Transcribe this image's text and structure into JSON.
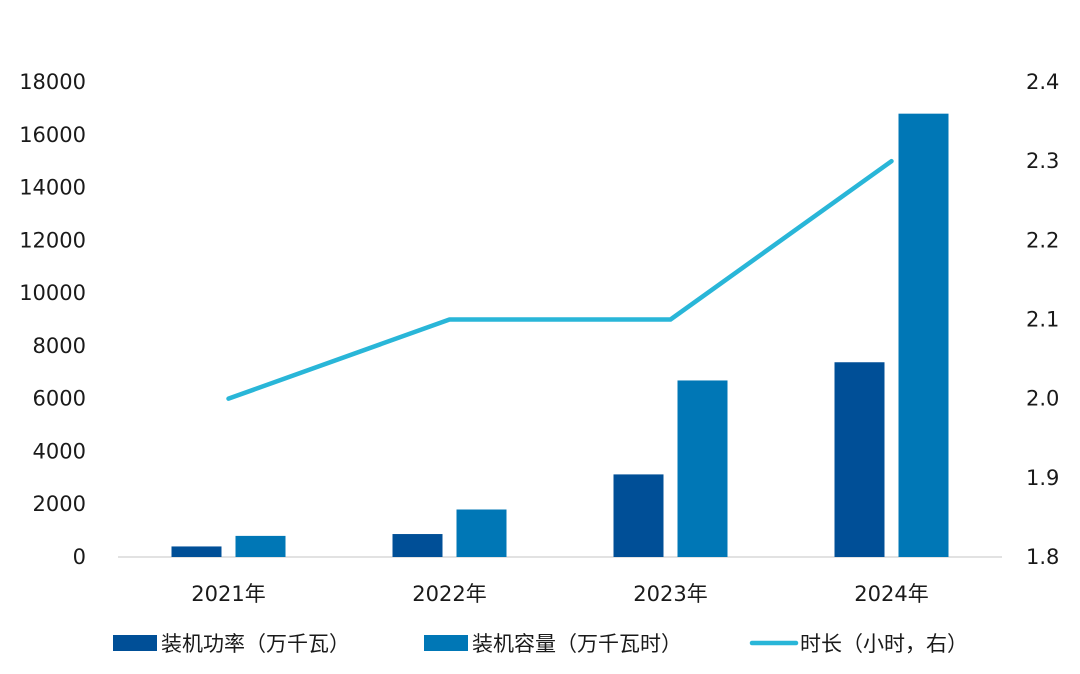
{
  "chart_data": {
    "type": "bar",
    "categories": [
      "2021年",
      "2022年",
      "2023年",
      "2024年"
    ],
    "series": [
      {
        "name": "装机功率（万千瓦）",
        "type": "bar",
        "axis": "left",
        "color": "#004f97",
        "values": [
          400,
          870,
          3130,
          7380
        ]
      },
      {
        "name": "装机容量（万千瓦时）",
        "type": "bar",
        "axis": "left",
        "color": "#0077b6",
        "values": [
          800,
          1800,
          6690,
          16800
        ]
      },
      {
        "name": "时长（小时，右）",
        "type": "line",
        "axis": "right",
        "color": "#29b6d8",
        "values": [
          2.0,
          2.1,
          2.1,
          2.3
        ]
      }
    ],
    "y_left": {
      "min": 0,
      "max": 18000,
      "ticks": [
        "0",
        "2000",
        "4000",
        "6000",
        "8000",
        "10000",
        "12000",
        "14000",
        "16000",
        "18000"
      ]
    },
    "y_right": {
      "min": 1.8,
      "max": 2.4,
      "ticks": [
        "1.8",
        "1.9",
        "2.0",
        "2.1",
        "2.2",
        "2.3",
        "2.4"
      ]
    },
    "grid": false,
    "legend_position": "bottom"
  }
}
